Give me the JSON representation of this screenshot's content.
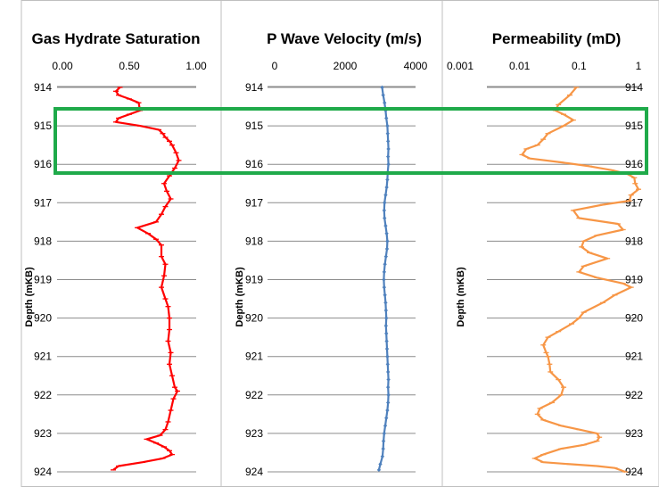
{
  "highlight_color": "#1faa4a",
  "chart_data": [
    {
      "type": "line",
      "title": "Gas Hydrate Saturation",
      "ylabel": "Depth (mKB)",
      "xlabel": "",
      "x_axis_position": "top",
      "xlim": [
        0,
        1
      ],
      "x_ticks": [
        "0.00",
        "0.50",
        "1.00"
      ],
      "ylim": [
        914,
        924
      ],
      "y_ticks": [
        "914",
        "915",
        "916",
        "917",
        "918",
        "919",
        "920",
        "921",
        "922",
        "923",
        "924"
      ],
      "y_inverted": true,
      "grid": "horizontal",
      "series": [
        {
          "color": "#ff0000",
          "marker": "dash",
          "points": [
            [
              0.43,
              914.0
            ],
            [
              0.4,
              914.1
            ],
            [
              0.42,
              914.2
            ],
            [
              0.5,
              914.3
            ],
            [
              0.57,
              914.4
            ],
            [
              0.58,
              914.6
            ],
            [
              0.5,
              914.7
            ],
            [
              0.42,
              914.8
            ],
            [
              0.4,
              914.9
            ],
            [
              0.58,
              915.0
            ],
            [
              0.72,
              915.1
            ],
            [
              0.75,
              915.2
            ],
            [
              0.77,
              915.3
            ],
            [
              0.8,
              915.4
            ],
            [
              0.82,
              915.5
            ],
            [
              0.85,
              915.7
            ],
            [
              0.87,
              915.9
            ],
            [
              0.84,
              916.1
            ],
            [
              0.8,
              916.3
            ],
            [
              0.76,
              916.5
            ],
            [
              0.78,
              916.7
            ],
            [
              0.81,
              916.9
            ],
            [
              0.77,
              917.1
            ],
            [
              0.74,
              917.3
            ],
            [
              0.7,
              917.5
            ],
            [
              0.56,
              917.65
            ],
            [
              0.64,
              917.8
            ],
            [
              0.7,
              917.95
            ],
            [
              0.74,
              918.1
            ],
            [
              0.74,
              918.4
            ],
            [
              0.77,
              918.6
            ],
            [
              0.76,
              918.9
            ],
            [
              0.74,
              919.2
            ],
            [
              0.77,
              919.5
            ],
            [
              0.79,
              919.7
            ],
            [
              0.8,
              920.0
            ],
            [
              0.8,
              920.3
            ],
            [
              0.79,
              920.6
            ],
            [
              0.81,
              920.9
            ],
            [
              0.8,
              921.2
            ],
            [
              0.82,
              921.5
            ],
            [
              0.84,
              921.8
            ],
            [
              0.86,
              921.9
            ],
            [
              0.83,
              922.1
            ],
            [
              0.81,
              922.4
            ],
            [
              0.79,
              922.7
            ],
            [
              0.77,
              922.9
            ],
            [
              0.73,
              923.05
            ],
            [
              0.63,
              923.15
            ],
            [
              0.7,
              923.25
            ],
            [
              0.76,
              923.35
            ],
            [
              0.8,
              923.45
            ],
            [
              0.82,
              923.55
            ],
            [
              0.75,
              923.65
            ],
            [
              0.6,
              923.75
            ],
            [
              0.42,
              923.85
            ],
            [
              0.38,
              923.95
            ]
          ]
        }
      ]
    },
    {
      "type": "line",
      "title": "P Wave Velocity (m/s)",
      "ylabel": "Depth (mKB)",
      "xlabel": "",
      "x_axis_position": "top",
      "xlim": [
        0,
        4000
      ],
      "x_ticks": [
        "0",
        "2000",
        "4000"
      ],
      "ylim": [
        914,
        924
      ],
      "y_ticks": [
        "914",
        "915",
        "916",
        "917",
        "918",
        "919",
        "920",
        "921",
        "922",
        "923",
        "924"
      ],
      "y_inverted": true,
      "grid": "horizontal",
      "series": [
        {
          "color": "#4f81bd",
          "marker": "diamond",
          "points": [
            [
              3050,
              914.0
            ],
            [
              3080,
              914.2
            ],
            [
              3120,
              914.4
            ],
            [
              3150,
              914.6
            ],
            [
              3170,
              914.8
            ],
            [
              3200,
              915.0
            ],
            [
              3210,
              915.2
            ],
            [
              3220,
              915.4
            ],
            [
              3230,
              915.6
            ],
            [
              3220,
              915.8
            ],
            [
              3230,
              916.0
            ],
            [
              3210,
              916.2
            ],
            [
              3200,
              916.4
            ],
            [
              3180,
              916.6
            ],
            [
              3150,
              916.8
            ],
            [
              3120,
              917.0
            ],
            [
              3110,
              917.2
            ],
            [
              3120,
              917.4
            ],
            [
              3150,
              917.6
            ],
            [
              3180,
              917.8
            ],
            [
              3200,
              918.0
            ],
            [
              3190,
              918.2
            ],
            [
              3160,
              918.4
            ],
            [
              3130,
              918.6
            ],
            [
              3110,
              918.8
            ],
            [
              3100,
              919.0
            ],
            [
              3110,
              919.2
            ],
            [
              3130,
              919.4
            ],
            [
              3150,
              919.6
            ],
            [
              3160,
              919.8
            ],
            [
              3170,
              920.0
            ],
            [
              3160,
              920.2
            ],
            [
              3170,
              920.4
            ],
            [
              3180,
              920.6
            ],
            [
              3190,
              920.8
            ],
            [
              3200,
              921.0
            ],
            [
              3210,
              921.2
            ],
            [
              3220,
              921.4
            ],
            [
              3230,
              921.6
            ],
            [
              3220,
              921.8
            ],
            [
              3230,
              922.0
            ],
            [
              3220,
              922.2
            ],
            [
              3200,
              922.4
            ],
            [
              3170,
              922.6
            ],
            [
              3140,
              922.8
            ],
            [
              3110,
              923.0
            ],
            [
              3090,
              923.2
            ],
            [
              3080,
              923.4
            ],
            [
              3060,
              923.6
            ],
            [
              3000,
              923.8
            ],
            [
              2960,
              923.95
            ]
          ]
        }
      ]
    },
    {
      "type": "line",
      "title": "Permeability (mD)",
      "ylabel": "Depth (mKB)",
      "xlabel": "",
      "x_axis_position": "top",
      "x_scale": "log",
      "xlim": [
        0.001,
        1
      ],
      "x_ticks": [
        "0.001",
        "0.01",
        "0.1",
        "1"
      ],
      "ylim": [
        914,
        924
      ],
      "y_ticks": [
        "914",
        "915",
        "916",
        "917",
        "918",
        "919",
        "920",
        "921",
        "922",
        "923",
        "924"
      ],
      "y_ticks_position": "right",
      "y_inverted": true,
      "grid": "horizontal",
      "series": [
        {
          "color": "#f79646",
          "marker": "dash",
          "points": [
            [
              0.09,
              914.0
            ],
            [
              0.07,
              914.2
            ],
            [
              0.045,
              914.45
            ],
            [
              0.04,
              914.6
            ],
            [
              0.055,
              914.7
            ],
            [
              0.08,
              914.85
            ],
            [
              0.055,
              915.0
            ],
            [
              0.03,
              915.2
            ],
            [
              0.025,
              915.35
            ],
            [
              0.02,
              915.5
            ],
            [
              0.013,
              915.6
            ],
            [
              0.011,
              915.75
            ],
            [
              0.015,
              915.85
            ],
            [
              0.05,
              915.95
            ],
            [
              0.15,
              916.05
            ],
            [
              0.35,
              916.15
            ],
            [
              0.65,
              916.25
            ],
            [
              0.85,
              916.35
            ],
            [
              0.88,
              916.5
            ],
            [
              1.0,
              916.65
            ],
            [
              0.75,
              916.8
            ],
            [
              0.7,
              916.95
            ],
            [
              0.25,
              917.05
            ],
            [
              0.08,
              917.2
            ],
            [
              0.1,
              917.4
            ],
            [
              0.45,
              917.55
            ],
            [
              0.55,
              917.7
            ],
            [
              0.2,
              917.85
            ],
            [
              0.12,
              918.0
            ],
            [
              0.11,
              918.15
            ],
            [
              0.15,
              918.3
            ],
            [
              0.3,
              918.45
            ],
            [
              0.12,
              918.65
            ],
            [
              0.1,
              918.8
            ],
            [
              0.2,
              918.95
            ],
            [
              0.55,
              919.1
            ],
            [
              0.75,
              919.2
            ],
            [
              0.4,
              919.4
            ],
            [
              0.25,
              919.6
            ],
            [
              0.12,
              919.85
            ],
            [
              0.1,
              920.0
            ],
            [
              0.075,
              920.15
            ],
            [
              0.045,
              920.35
            ],
            [
              0.03,
              920.5
            ],
            [
              0.025,
              920.7
            ],
            [
              0.028,
              920.9
            ],
            [
              0.03,
              921.0
            ],
            [
              0.032,
              921.2
            ],
            [
              0.033,
              921.4
            ],
            [
              0.045,
              921.6
            ],
            [
              0.055,
              921.8
            ],
            [
              0.05,
              922.0
            ],
            [
              0.035,
              922.2
            ],
            [
              0.022,
              922.35
            ],
            [
              0.02,
              922.5
            ],
            [
              0.025,
              922.65
            ],
            [
              0.05,
              922.8
            ],
            [
              0.1,
              922.9
            ],
            [
              0.2,
              923.0
            ],
            [
              0.22,
              923.1
            ],
            [
              0.2,
              923.2
            ],
            [
              0.12,
              923.3
            ],
            [
              0.05,
              923.4
            ],
            [
              0.025,
              923.55
            ],
            [
              0.018,
              923.65
            ],
            [
              0.025,
              923.75
            ],
            [
              0.07,
              923.8
            ],
            [
              0.2,
              923.85
            ],
            [
              0.4,
              923.9
            ],
            [
              0.6,
              924.0
            ]
          ]
        }
      ]
    }
  ]
}
